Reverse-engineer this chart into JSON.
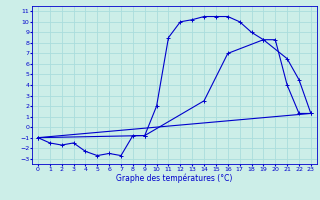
{
  "title": "Graphe des températures (°C)",
  "bg_color": "#cceee8",
  "grid_color": "#aadddd",
  "line_color": "#0000cc",
  "xlim": [
    -0.5,
    23.5
  ],
  "ylim": [
    -3.5,
    11.5
  ],
  "xticks": [
    0,
    1,
    2,
    3,
    4,
    5,
    6,
    7,
    8,
    9,
    10,
    11,
    12,
    13,
    14,
    15,
    16,
    17,
    18,
    19,
    20,
    21,
    22,
    23
  ],
  "yticks": [
    -3,
    -2,
    -1,
    0,
    1,
    2,
    3,
    4,
    5,
    6,
    7,
    8,
    9,
    10,
    11
  ],
  "curve1_x": [
    0,
    1,
    2,
    3,
    4,
    5,
    6,
    7,
    8,
    9,
    10,
    11,
    12,
    13,
    14,
    15,
    16,
    17,
    18,
    19,
    20,
    21,
    22,
    23
  ],
  "curve1_y": [
    -1,
    -1.5,
    -1.7,
    -1.5,
    -2.3,
    -2.7,
    -2.5,
    -2.7,
    -0.8,
    -0.8,
    2,
    8.5,
    10,
    10.2,
    10.5,
    10.5,
    10.5,
    10,
    9,
    8.3,
    8.3,
    4,
    1.3,
    1.3
  ],
  "curve2_x": [
    0,
    9,
    14,
    16,
    19,
    21,
    22,
    23
  ],
  "curve2_y": [
    -1,
    -0.8,
    2.5,
    7,
    8.3,
    6.5,
    4.5,
    1.3
  ],
  "curve3_x": [
    0,
    23
  ],
  "curve3_y": [
    -1,
    1.3
  ],
  "marker": "+"
}
